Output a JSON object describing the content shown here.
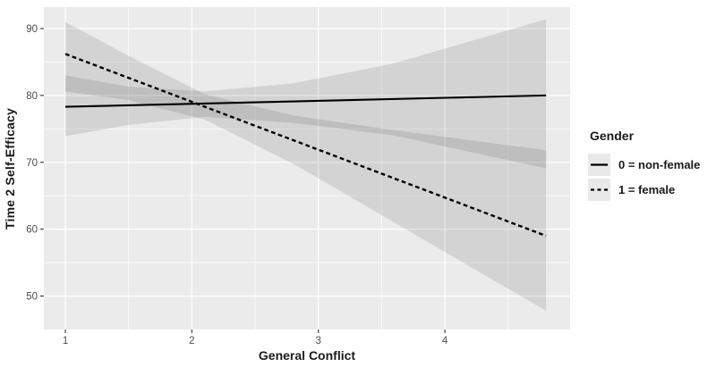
{
  "chart_data": {
    "type": "line",
    "title": "",
    "xlabel": "General Conflict",
    "ylabel": "Time 2 Self-Efficacy",
    "legend": {
      "title": "Gender",
      "position": "right"
    },
    "xlim": [
      0.83,
      4.99
    ],
    "ylim": [
      45.0,
      93.2
    ],
    "x_ticks": [
      "1",
      "2",
      "3",
      "4"
    ],
    "x_tick_values": [
      1,
      2,
      3,
      4
    ],
    "y_ticks": [
      "50",
      "60",
      "70",
      "80",
      "90"
    ],
    "y_tick_values": [
      50,
      60,
      70,
      80,
      90
    ],
    "x_minor": [
      1.5,
      2.5,
      3.5,
      4.5
    ],
    "y_minor": [
      55,
      65,
      75,
      85
    ],
    "grid": true,
    "series": [
      {
        "id": "non-female",
        "name": "0 = non-female",
        "linetype": "solid",
        "x": [
          1.0,
          4.8
        ],
        "y": [
          78.3,
          80.0
        ],
        "ribbon": {
          "x": [
            1.0,
            1.5,
            2.1,
            2.8,
            3.6,
            4.8
          ],
          "lo": [
            73.9,
            75.6,
            76.8,
            75.9,
            74.0,
            69.1
          ],
          "hi": [
            83.0,
            81.3,
            80.6,
            81.8,
            84.8,
            91.4
          ]
        }
      },
      {
        "id": "female",
        "name": "1 = female",
        "linetype": "dashed",
        "x": [
          1.0,
          4.8
        ],
        "y": [
          86.2,
          59.0
        ],
        "ribbon": {
          "x": [
            1.0,
            1.5,
            2.1,
            2.8,
            3.6,
            4.8
          ],
          "lo": [
            80.6,
            79.3,
            76.4,
            69.8,
            61.0,
            47.8
          ],
          "hi": [
            91.0,
            85.9,
            80.2,
            77.0,
            74.8,
            71.8
          ]
        }
      }
    ],
    "colors": {
      "panel_bg": "#EBEBEB",
      "gridline": "#FFFFFF",
      "line": "#000000",
      "ribbon_fill": "rgba(28,28,28,0.115)",
      "tick_label": "#4D4D4D",
      "tick_mark": "#333333",
      "legend_key_bg": "#E9E9E9",
      "text": "#1A1A1A"
    }
  }
}
